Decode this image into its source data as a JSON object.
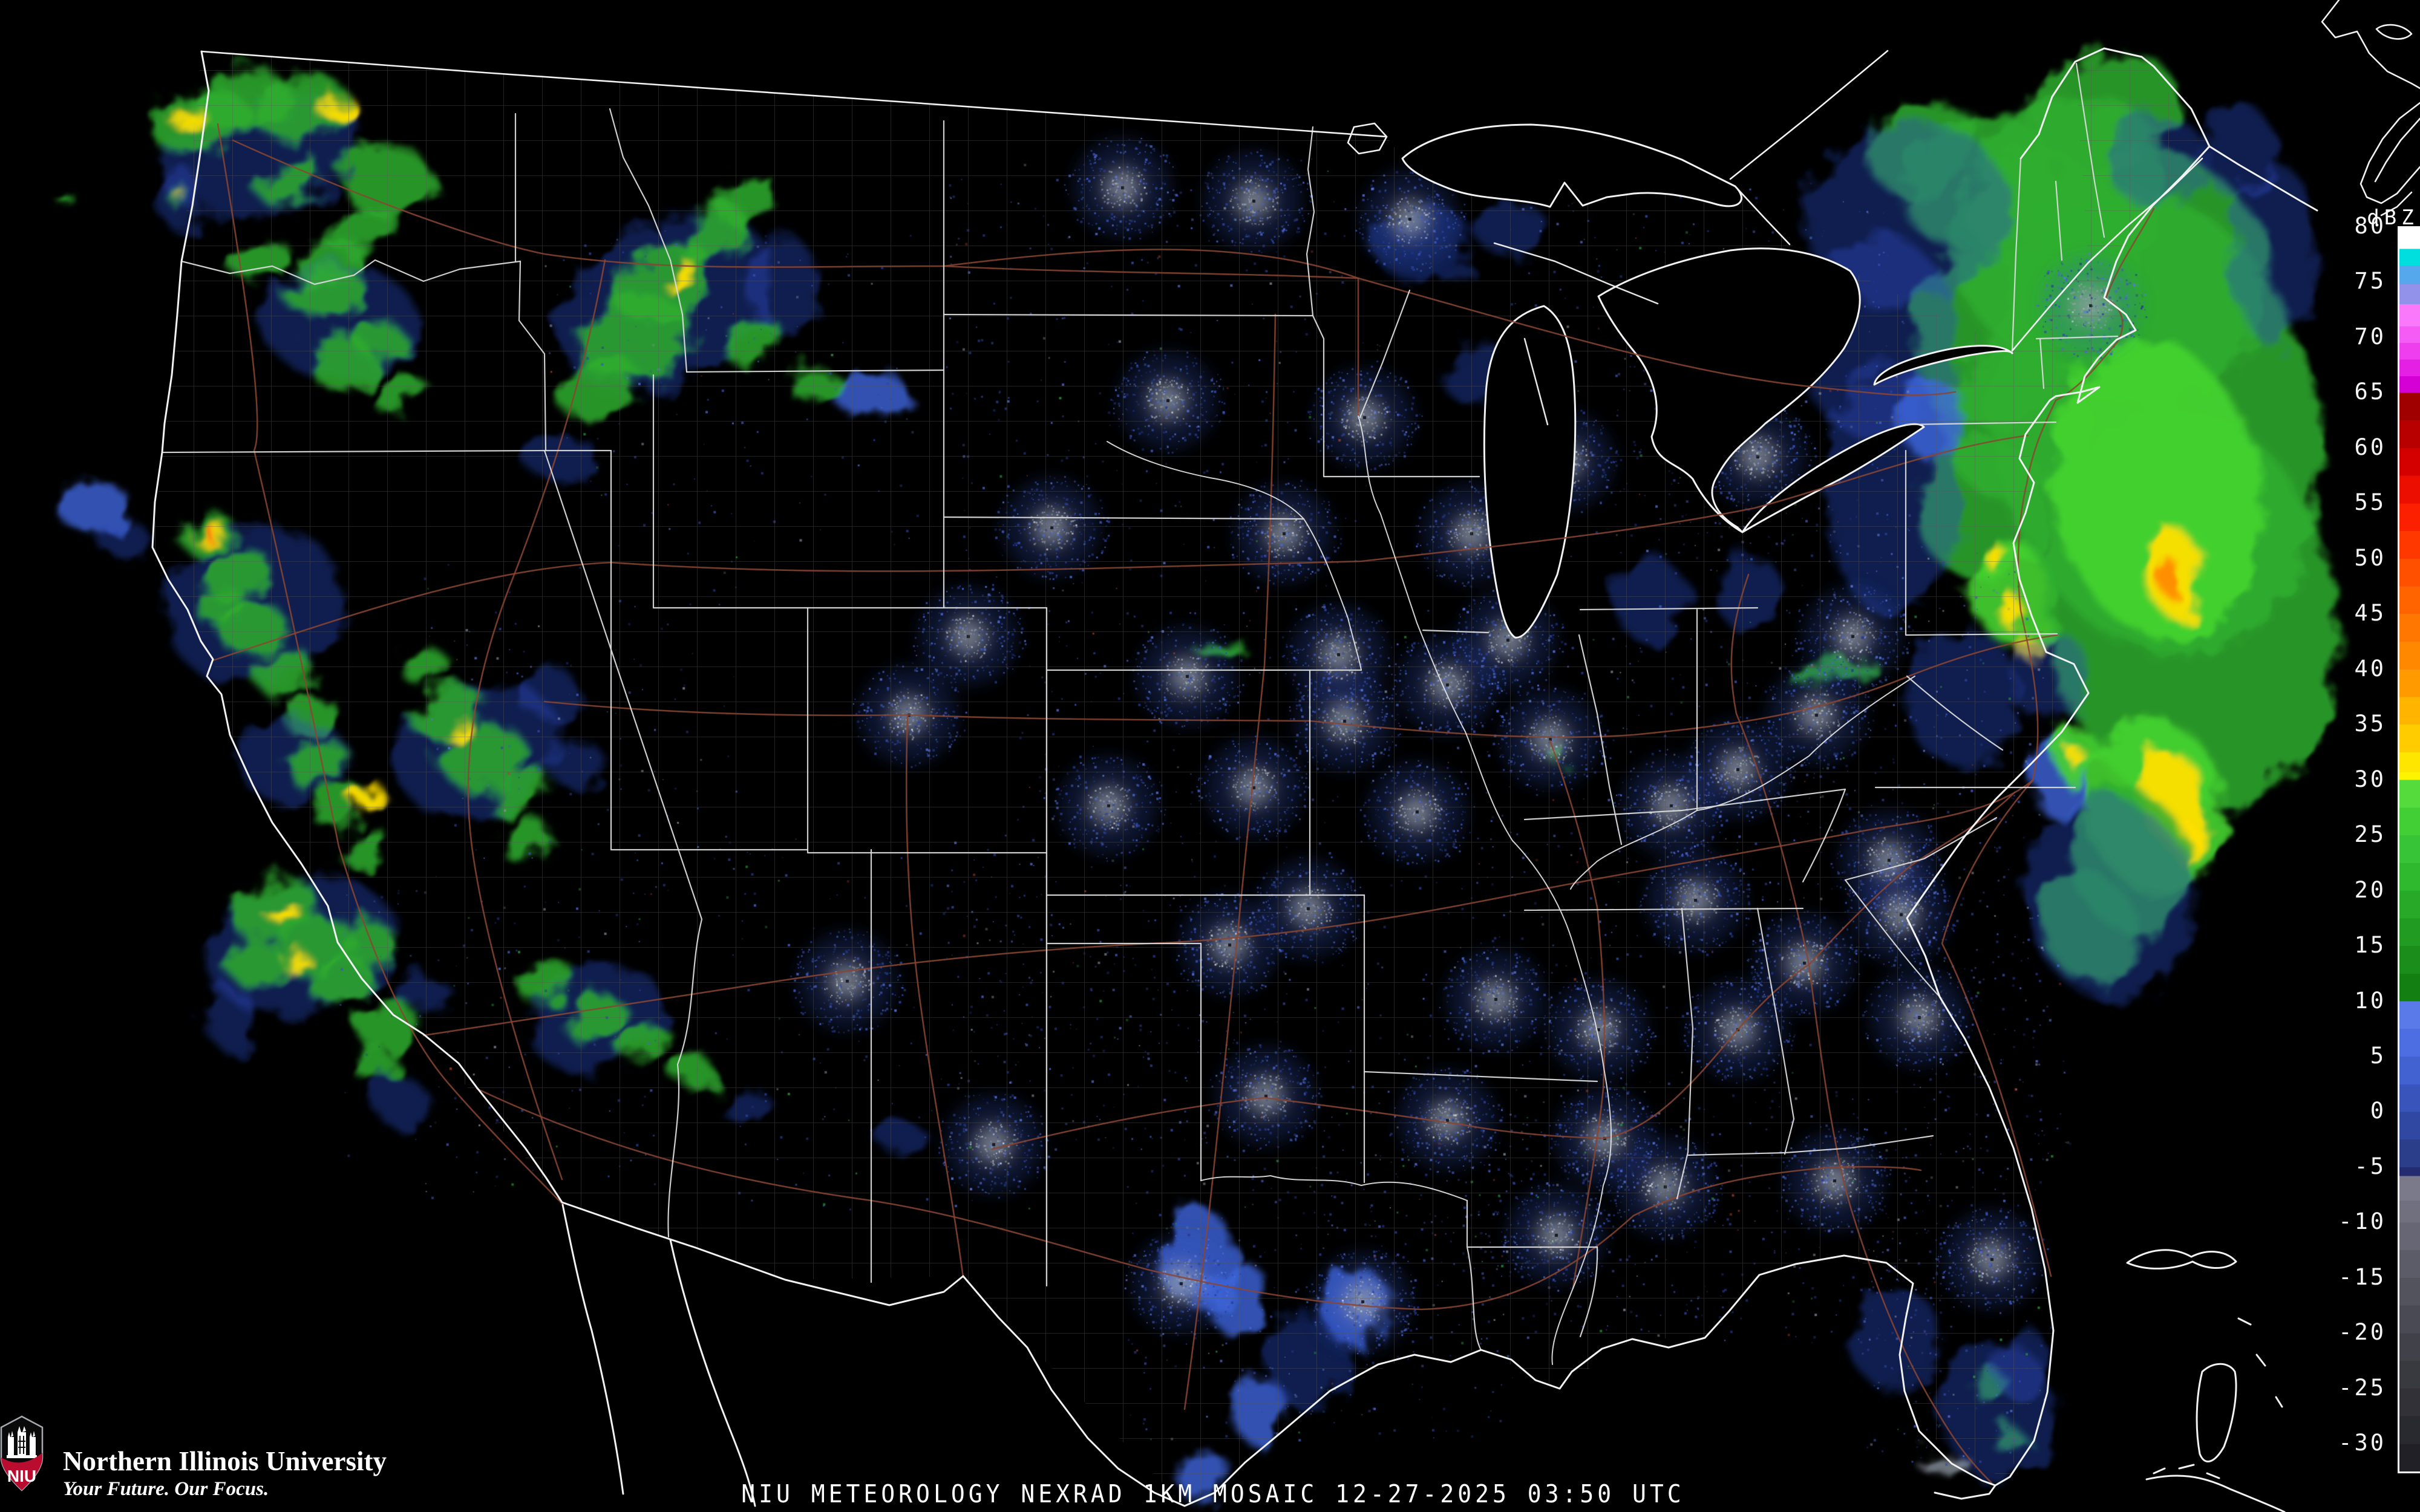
{
  "branding": {
    "university": "Northern Illinois University",
    "tagline": "Your Future. Our Focus.",
    "shield_text": "NIU",
    "shield_red": "#ba0c2f",
    "shield_border": "#a7abb0"
  },
  "caption": {
    "text": "NIU METEOROLOGY NEXRAD 1KM MOSAIC  12-27-2025 03:50 UTC"
  },
  "colorbar": {
    "title": "dBZ",
    "top_value": 80,
    "bottom_value": -32.5,
    "tick_step": 5,
    "ticks": [
      "80",
      "75",
      "70",
      "65",
      "60",
      "55",
      "50",
      "45",
      "40",
      "35",
      "30",
      "25",
      "20",
      "15",
      "10",
      "5",
      "0",
      "-5",
      "-10",
      "-15",
      "-20",
      "-25",
      "-30"
    ],
    "bands": [
      [
        80,
        "#ffffff"
      ],
      [
        78,
        "#00dede"
      ],
      [
        76.5,
        "#55a8ec"
      ],
      [
        74.8,
        "#9292ea"
      ],
      [
        73,
        "#fa78fa"
      ],
      [
        71,
        "#f55cf5"
      ],
      [
        69.5,
        "#ee3eee"
      ],
      [
        68,
        "#e320e3"
      ],
      [
        66.5,
        "#d400d4"
      ],
      [
        65,
        "#a00000"
      ],
      [
        62.5,
        "#b80000"
      ],
      [
        60,
        "#d40000"
      ],
      [
        57.5,
        "#ec0e00"
      ],
      [
        55,
        "#fc2000"
      ],
      [
        52.5,
        "#ff3800"
      ],
      [
        50,
        "#ff5000"
      ],
      [
        47.5,
        "#ff6400"
      ],
      [
        45,
        "#ff7600"
      ],
      [
        42.5,
        "#ff8800"
      ],
      [
        40,
        "#ff9a00"
      ],
      [
        37.5,
        "#ffb400"
      ],
      [
        35,
        "#ffcc00"
      ],
      [
        32.5,
        "#ffe600"
      ],
      [
        30.7,
        "#fcf400"
      ],
      [
        30,
        "#55dc3c"
      ],
      [
        27.5,
        "#42cf36"
      ],
      [
        25,
        "#37c437"
      ],
      [
        22.5,
        "#2eb92e"
      ],
      [
        20,
        "#28aa28"
      ],
      [
        17.5,
        "#219b21"
      ],
      [
        15,
        "#1a8d1a"
      ],
      [
        12.5,
        "#137f13"
      ],
      [
        10,
        "#5a7aea"
      ],
      [
        7.5,
        "#4d6ee2"
      ],
      [
        5,
        "#4262d2"
      ],
      [
        2.5,
        "#3954ba"
      ],
      [
        0,
        "#3048a2"
      ],
      [
        -2.5,
        "#2a3e8a"
      ],
      [
        -5,
        "#232c70"
      ],
      [
        -5.8,
        "#7a7a8a"
      ],
      [
        -8,
        "#70707e"
      ],
      [
        -10,
        "#666674"
      ],
      [
        -12.5,
        "#5c5c68"
      ],
      [
        -15,
        "#53535e"
      ],
      [
        -17.5,
        "#4a4a54"
      ],
      [
        -20,
        "#41414a"
      ],
      [
        -22.5,
        "#393940"
      ],
      [
        -25,
        "#313137"
      ],
      [
        -27.5,
        "#292930"
      ],
      [
        -30,
        "#202026"
      ]
    ]
  },
  "map": {
    "background": "#000000",
    "line_colors": {
      "coast": "#f2f2f2",
      "state": "#d9d9d9",
      "county": "#585858",
      "road": "#8a4531",
      "river": "#e8e8e8"
    },
    "echo_colors": {
      "g": [
        "#2fae2f",
        0.85
      ],
      "G": [
        "#45d430",
        0.9
      ],
      "y": [
        "#ffdf00",
        0.95
      ],
      "o": [
        "#ff8a00",
        0.95
      ],
      "o2": [
        "#ff5510",
        0.95
      ],
      "b": [
        "#3f66dd",
        0.8
      ],
      "B": [
        "#2b4cc4",
        0.4
      ],
      "w": [
        "#9aa4b0",
        0.7
      ]
    },
    "echoes": [
      [
        300,
        330,
        40,
        50,
        0,
        "B"
      ],
      [
        300,
        328,
        16,
        18,
        0,
        "g"
      ],
      [
        302,
        326,
        8,
        9,
        0,
        "y"
      ],
      [
        107,
        327,
        12,
        9,
        0,
        "g"
      ],
      [
        430,
        255,
        170,
        100,
        -15,
        "B"
      ],
      [
        330,
        200,
        80,
        50,
        -20,
        "g"
      ],
      [
        395,
        165,
        85,
        45,
        -10,
        "g"
      ],
      [
        500,
        180,
        85,
        50,
        -5,
        "g"
      ],
      [
        560,
        180,
        32,
        16,
        -5,
        "y"
      ],
      [
        310,
        195,
        26,
        13,
        -20,
        "y"
      ],
      [
        640,
        300,
        75,
        60,
        0,
        "g"
      ],
      [
        600,
        385,
        60,
        35,
        -20,
        "g"
      ],
      [
        480,
        300,
        55,
        32,
        -30,
        "g"
      ],
      [
        545,
        440,
        60,
        32,
        -20,
        "g"
      ],
      [
        430,
        430,
        50,
        32,
        -20,
        "g"
      ],
      [
        560,
        530,
        130,
        90,
        0,
        "B"
      ],
      [
        540,
        485,
        65,
        40,
        -10,
        "g"
      ],
      [
        565,
        600,
        55,
        45,
        0,
        "g"
      ],
      [
        625,
        560,
        42,
        30,
        0,
        "g"
      ],
      [
        660,
        650,
        45,
        30,
        -20,
        "g"
      ],
      [
        1100,
        500,
        190,
        130,
        -30,
        "B"
      ],
      [
        1050,
        560,
        95,
        70,
        -20,
        "g"
      ],
      [
        1100,
        470,
        85,
        60,
        -40,
        "g"
      ],
      [
        1123,
        452,
        32,
        13,
        -40,
        "y"
      ],
      [
        1180,
        390,
        62,
        40,
        -45,
        "g"
      ],
      [
        1232,
        330,
        52,
        30,
        -45,
        "g"
      ],
      [
        988,
        640,
        72,
        42,
        -20,
        "g"
      ],
      [
        1292,
        470,
        62,
        82,
        0,
        "B"
      ],
      [
        1440,
        652,
        58,
        44,
        0,
        "b"
      ],
      [
        1352,
        640,
        44,
        30,
        0,
        "g"
      ],
      [
        1240,
        560,
        50,
        35,
        -30,
        "g"
      ],
      [
        930,
        760,
        60,
        40,
        0,
        "B"
      ],
      [
        790,
        1240,
        140,
        110,
        -20,
        "B"
      ],
      [
        742,
        1180,
        62,
        46,
        -20,
        "g"
      ],
      [
        800,
        1252,
        70,
        46,
        -20,
        "g"
      ],
      [
        762,
        1212,
        22,
        12,
        -20,
        "y"
      ],
      [
        858,
        1310,
        56,
        36,
        -20,
        "g"
      ],
      [
        700,
        1100,
        42,
        30,
        0,
        "g"
      ],
      [
        910,
        1150,
        52,
        42,
        0,
        "B"
      ],
      [
        952,
        1262,
        46,
        40,
        0,
        "B"
      ],
      [
        870,
        1390,
        44,
        30,
        -20,
        "g"
      ],
      [
        420,
        1000,
        150,
        130,
        -20,
        "B"
      ],
      [
        155,
        838,
        58,
        46,
        0,
        "b"
      ],
      [
        205,
        892,
        42,
        32,
        0,
        "B"
      ],
      [
        340,
        880,
        48,
        32,
        -10,
        "g"
      ],
      [
        342,
        878,
        28,
        13,
        -10,
        "y"
      ],
      [
        339,
        876,
        14,
        7,
        -10,
        "o2"
      ],
      [
        390,
        950,
        58,
        42,
        -20,
        "g"
      ],
      [
        420,
        1042,
        52,
        42,
        -30,
        "g"
      ],
      [
        372,
        1010,
        42,
        32,
        0,
        "g"
      ],
      [
        470,
        1112,
        48,
        36,
        -30,
        "g"
      ],
      [
        512,
        1182,
        42,
        32,
        -30,
        "g"
      ],
      [
        482,
        1255,
        92,
        72,
        0,
        "B"
      ],
      [
        525,
        1262,
        50,
        34,
        -40,
        "g"
      ],
      [
        562,
        1332,
        46,
        30,
        -40,
        "g"
      ],
      [
        600,
        1400,
        40,
        28,
        -40,
        "g"
      ],
      [
        608,
        1315,
        26,
        16,
        -40,
        "y"
      ],
      [
        500,
        1565,
        160,
        115,
        -10,
        "B"
      ],
      [
        452,
        1502,
        72,
        52,
        -20,
        "g"
      ],
      [
        520,
        1562,
        64,
        48,
        -20,
        "g"
      ],
      [
        472,
        1512,
        24,
        13,
        -20,
        "y"
      ],
      [
        487,
        1588,
        21,
        11,
        -20,
        "y"
      ],
      [
        420,
        1592,
        48,
        36,
        0,
        "g"
      ],
      [
        562,
        1622,
        52,
        42,
        -20,
        "g"
      ],
      [
        612,
        1562,
        46,
        36,
        0,
        "g"
      ],
      [
        646,
        1700,
        50,
        40,
        -20,
        "g"
      ],
      [
        700,
        1642,
        42,
        32,
        0,
        "B"
      ],
      [
        380,
        1682,
        42,
        52,
        0,
        "B"
      ],
      [
        620,
        1762,
        36,
        26,
        0,
        "g"
      ],
      [
        660,
        1820,
        40,
        45,
        0,
        "B"
      ],
      [
        985,
        1682,
        115,
        85,
        -20,
        "B"
      ],
      [
        902,
        1622,
        48,
        32,
        -20,
        "g"
      ],
      [
        982,
        1682,
        52,
        36,
        -20,
        "g"
      ],
      [
        1062,
        1722,
        44,
        30,
        -20,
        "g"
      ],
      [
        1145,
        1772,
        36,
        26,
        0,
        "g"
      ],
      [
        1230,
        1825,
        40,
        30,
        0,
        "B"
      ],
      [
        1490,
        1880,
        40,
        28,
        0,
        "B"
      ],
      [
        3032,
        1112,
        72,
        18,
        -12,
        "g"
      ],
      [
        2580,
        1252,
        16,
        11,
        0,
        "g"
      ],
      [
        2020,
        1075,
        40,
        14,
        -8,
        "g"
      ],
      [
        1978,
        2078,
        62,
        82,
        0,
        "b"
      ],
      [
        2042,
        2142,
        52,
        62,
        0,
        "b"
      ],
      [
        2242,
        2162,
        56,
        66,
        0,
        "b"
      ],
      [
        2082,
        2332,
        46,
        56,
        0,
        "b"
      ],
      [
        1990,
        2442,
        42,
        46,
        0,
        "b"
      ],
      [
        2160,
        2250,
        70,
        80,
        0,
        "B"
      ],
      [
        3292,
        2292,
        30,
        25,
        0,
        "g"
      ],
      [
        3322,
        2382,
        26,
        20,
        0,
        "g"
      ],
      [
        3302,
        2332,
        95,
        115,
        0,
        "B"
      ],
      [
        3132,
        2212,
        75,
        85,
        0,
        "B"
      ],
      [
        3215,
        2422,
        42,
        18,
        0,
        "w"
      ],
      [
        3345,
        2258,
        50,
        60,
        0,
        "B"
      ],
      [
        3380,
        420,
        150,
        170,
        -20,
        "g"
      ],
      [
        3290,
        560,
        130,
        150,
        -10,
        "g"
      ],
      [
        3330,
        700,
        120,
        130,
        0,
        "g"
      ],
      [
        3280,
        840,
        110,
        120,
        0,
        "g"
      ],
      [
        3330,
        980,
        70,
        90,
        -10,
        "G"
      ],
      [
        3270,
        300,
        130,
        110,
        -20,
        "g"
      ],
      [
        3180,
        245,
        95,
        75,
        -20,
        "g"
      ],
      [
        3480,
        185,
        125,
        95,
        -20,
        "g"
      ],
      [
        3560,
        700,
        270,
        390,
        -12,
        "g"
      ],
      [
        3620,
        1010,
        240,
        340,
        -10,
        "g"
      ],
      [
        3540,
        460,
        210,
        210,
        -20,
        "g"
      ],
      [
        3420,
        310,
        170,
        140,
        -30,
        "g"
      ],
      [
        3565,
        810,
        170,
        250,
        -10,
        "G"
      ],
      [
        3592,
        945,
        48,
        75,
        -10,
        "y"
      ],
      [
        3588,
        958,
        22,
        32,
        -10,
        "o"
      ],
      [
        3560,
        1330,
        115,
        145,
        -10,
        "G"
      ],
      [
        3592,
        1322,
        52,
        82,
        -10,
        "y"
      ],
      [
        3608,
        1390,
        26,
        40,
        -10,
        "y"
      ],
      [
        3152,
        355,
        170,
        150,
        -20,
        "B"
      ],
      [
        3105,
        560,
        130,
        170,
        0,
        "B"
      ],
      [
        3128,
        810,
        110,
        210,
        0,
        "B"
      ],
      [
        3245,
        1155,
        95,
        115,
        0,
        "B"
      ],
      [
        3522,
        1425,
        95,
        125,
        -15,
        "g"
      ],
      [
        3455,
        1535,
        75,
        95,
        -15,
        "g"
      ],
      [
        3488,
        1488,
        140,
        170,
        -15,
        "B"
      ],
      [
        3405,
        1285,
        55,
        65,
        0,
        "b"
      ],
      [
        3432,
        1252,
        38,
        48,
        0,
        "G"
      ],
      [
        3437,
        1257,
        12,
        16,
        0,
        "y"
      ],
      [
        3562,
        262,
        85,
        75,
        0,
        "B"
      ],
      [
        3325,
        1012,
        20,
        26,
        0,
        "y"
      ],
      [
        3352,
        1072,
        17,
        22,
        0,
        "y"
      ],
      [
        3298,
        922,
        15,
        20,
        0,
        "y"
      ],
      [
        3388,
        1118,
        60,
        80,
        0,
        "B"
      ],
      [
        3760,
        420,
        70,
        150,
        0,
        "B"
      ],
      [
        3700,
        250,
        60,
        80,
        0,
        "B"
      ],
      [
        2352,
        402,
        85,
        62,
        0,
        "B"
      ],
      [
        2455,
        622,
        72,
        52,
        0,
        "B"
      ],
      [
        2502,
        382,
        62,
        42,
        0,
        "B"
      ],
      [
        2728,
        992,
        60,
        70,
        0,
        "B"
      ],
      [
        2892,
        982,
        55,
        65,
        0,
        "B"
      ],
      [
        3192,
        692,
        55,
        65,
        0,
        "b"
      ]
    ],
    "radar_sites": [
      [
        1855,
        310
      ],
      [
        2072,
        332
      ],
      [
        2330,
        362
      ],
      [
        2255,
        690
      ],
      [
        1930,
        662
      ],
      [
        1738,
        872
      ],
      [
        2122,
        882
      ],
      [
        2432,
        882
      ],
      [
        2586,
        762
      ],
      [
        2492,
        1058
      ],
      [
        2212,
        1082
      ],
      [
        1962,
        1118
      ],
      [
        2392,
        1132
      ],
      [
        1502,
        1182
      ],
      [
        2222,
        1192
      ],
      [
        2562,
        1222
      ],
      [
        2342,
        1342
      ],
      [
        2072,
        1302
      ],
      [
        1832,
        1332
      ],
      [
        2762,
        1332
      ],
      [
        2872,
        1272
      ],
      [
        3002,
        1182
      ],
      [
        3062,
        1052
      ],
      [
        2032,
        1562
      ],
      [
        2162,
        1502
      ],
      [
        2472,
        1652
      ],
      [
        2642,
        1702
      ],
      [
        2802,
        1488
      ],
      [
        2872,
        1702
      ],
      [
        2982,
        1592
      ],
      [
        3122,
        1422
      ],
      [
        3142,
        1512
      ],
      [
        3172,
        1682
      ],
      [
        2392,
        1852
      ],
      [
        2652,
        1882
      ],
      [
        2572,
        2042
      ],
      [
        2752,
        1962
      ],
      [
        1642,
        1892
      ],
      [
        2092,
        1812
      ],
      [
        1952,
        2122
      ],
      [
        2252,
        2152
      ],
      [
        3032,
        1952
      ],
      [
        3292,
        2082
      ],
      [
        1400,
        1622
      ],
      [
        1600,
        1052
      ],
      [
        3455,
        505
      ],
      [
        2905,
        755
      ]
    ],
    "speckle_regions": [
      [
        1560,
        260,
        720,
        720,
        320
      ],
      [
        1680,
        1000,
        620,
        900,
        380
      ],
      [
        1860,
        1900,
        640,
        480,
        320
      ],
      [
        2300,
        1000,
        720,
        800,
        430
      ],
      [
        2480,
        300,
        640,
        620,
        260
      ],
      [
        2960,
        900,
        420,
        700,
        300
      ],
      [
        2450,
        1800,
        760,
        420,
        340
      ],
      [
        3060,
        1900,
        330,
        520,
        220
      ],
      [
        2680,
        430,
        480,
        520,
        200
      ],
      [
        900,
        380,
        620,
        520,
        130
      ],
      [
        700,
        900,
        520,
        620,
        130
      ],
      [
        1180,
        1380,
        540,
        620,
        150
      ],
      [
        560,
        1460,
        540,
        520,
        130
      ],
      [
        1560,
        1460,
        520,
        440,
        150
      ],
      [
        2260,
        1800,
        420,
        300,
        160
      ],
      [
        3160,
        1560,
        260,
        340,
        140
      ]
    ]
  }
}
